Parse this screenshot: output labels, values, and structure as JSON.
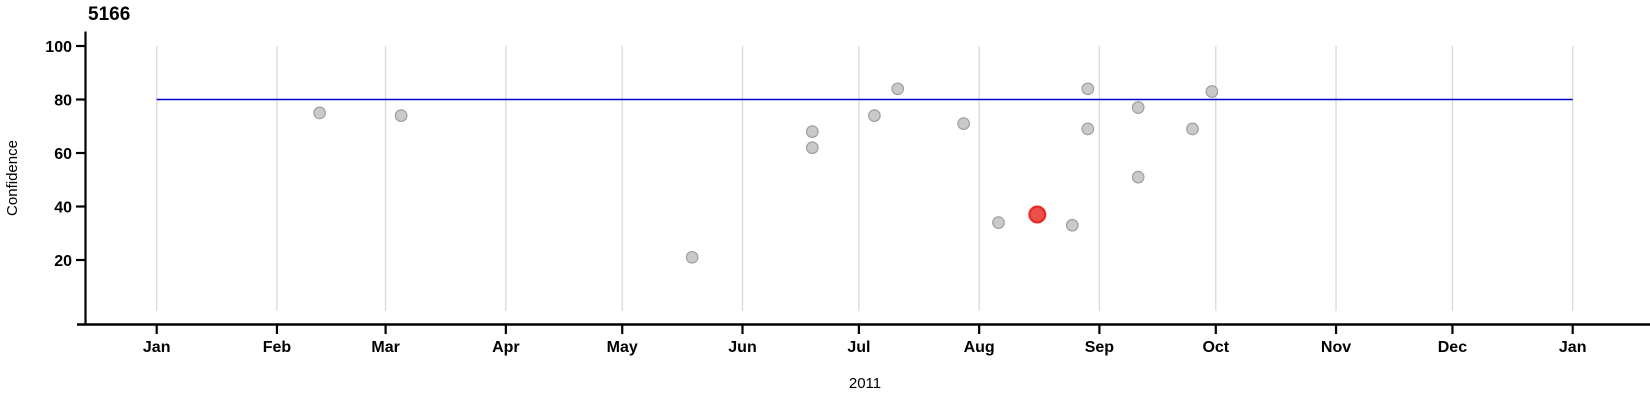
{
  "chart_data": {
    "type": "scatter",
    "title": "5166",
    "ylabel": "Confidence",
    "xlabel": "2011",
    "x_axis": {
      "start": "2011-01-01",
      "end": "2012-01-01",
      "ticks": [
        {
          "label": "Jan",
          "date": "2011-01-01"
        },
        {
          "label": "Feb",
          "date": "2011-02-01"
        },
        {
          "label": "Mar",
          "date": "2011-03-01"
        },
        {
          "label": "Apr",
          "date": "2011-04-01"
        },
        {
          "label": "May",
          "date": "2011-05-01"
        },
        {
          "label": "Jun",
          "date": "2011-06-01"
        },
        {
          "label": "Jul",
          "date": "2011-07-01"
        },
        {
          "label": "Aug",
          "date": "2011-08-01"
        },
        {
          "label": "Sep",
          "date": "2011-09-01"
        },
        {
          "label": "Oct",
          "date": "2011-10-01"
        },
        {
          "label": "Nov",
          "date": "2011-11-01"
        },
        {
          "label": "Dec",
          "date": "2011-12-01"
        },
        {
          "label": "Jan",
          "date": "2012-01-01"
        }
      ]
    },
    "y_axis": {
      "ticks": [
        20,
        40,
        60,
        80,
        100
      ],
      "range": [
        0,
        100
      ],
      "grid": true
    },
    "legend": null,
    "reference_line": {
      "value": 80
    },
    "points": [
      {
        "date": "2011-02-12",
        "confidence": 75,
        "highlight": false
      },
      {
        "date": "2011-03-05",
        "confidence": 74,
        "highlight": false
      },
      {
        "date": "2011-05-19",
        "confidence": 21,
        "highlight": false
      },
      {
        "date": "2011-06-19",
        "confidence": 68,
        "highlight": false
      },
      {
        "date": "2011-06-19",
        "confidence": 62,
        "highlight": false
      },
      {
        "date": "2011-07-05",
        "confidence": 74,
        "highlight": false
      },
      {
        "date": "2011-07-11",
        "confidence": 84,
        "highlight": false
      },
      {
        "date": "2011-07-28",
        "confidence": 71,
        "highlight": false
      },
      {
        "date": "2011-08-06",
        "confidence": 34,
        "highlight": false
      },
      {
        "date": "2011-08-16",
        "confidence": 37,
        "highlight": true
      },
      {
        "date": "2011-08-25",
        "confidence": 33,
        "highlight": false
      },
      {
        "date": "2011-08-29",
        "confidence": 84,
        "highlight": false
      },
      {
        "date": "2011-08-29",
        "confidence": 69,
        "highlight": false
      },
      {
        "date": "2011-09-11",
        "confidence": 77,
        "highlight": false
      },
      {
        "date": "2011-09-11",
        "confidence": 51,
        "highlight": false
      },
      {
        "date": "2011-09-25",
        "confidence": 69,
        "highlight": false
      },
      {
        "date": "2011-09-30",
        "confidence": 83,
        "highlight": false
      }
    ],
    "colors": {
      "point_fill": "#c9c9c9",
      "point_stroke": "#9c9c9c",
      "highlight_fill": "#ea514b",
      "highlight_stroke": "#e62e26",
      "grid": "#d9d9d9",
      "axis": "#000000",
      "reference": "#0000cc"
    }
  }
}
